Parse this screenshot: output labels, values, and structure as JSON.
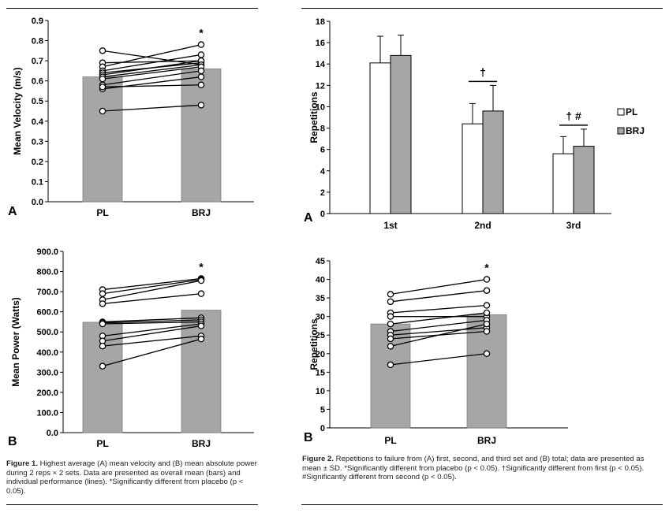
{
  "figure1": {
    "caption_label": "Figure 1.",
    "caption_text": "Highest average (A) mean velocity and (B) mean absolute power during 2 reps × 2 sets. Data are presented as overall mean (bars) and individual performance (lines). *Significantly different from placebo (p < 0.05)."
  },
  "figure2": {
    "caption_label": "Figure 2.",
    "caption_text": "Repetitions to failure from (A) first, second, and third set and (B) total; data are presented as mean ± SD. *Significantly different from placebo (p < 0.05). †Significantly different from first (p < 0.05). #Significantly different from second (p < 0.05)."
  },
  "chart_data": [
    {
      "id": "f1a",
      "type": "bar",
      "panel_label": "A",
      "ylabel": "Mean Velocity (m/s)",
      "ylim": [
        0,
        0.9
      ],
      "yticks": [
        "0.0",
        "0.1",
        "0.2",
        "0.3",
        "0.4",
        "0.5",
        "0.6",
        "0.7",
        "0.8",
        "0.9"
      ],
      "categories": [
        "PL",
        "BRJ"
      ],
      "values": [
        0.62,
        0.66
      ],
      "bar_color": "#a6a6a6",
      "annotation": "*",
      "individual_lines": [
        [
          0.75,
          0.68
        ],
        [
          0.69,
          0.7
        ],
        [
          0.67,
          0.78
        ],
        [
          0.65,
          0.73
        ],
        [
          0.64,
          0.69
        ],
        [
          0.63,
          0.7
        ],
        [
          0.62,
          0.68
        ],
        [
          0.61,
          0.67
        ],
        [
          0.58,
          0.65
        ],
        [
          0.56,
          0.62
        ],
        [
          0.57,
          0.58
        ],
        [
          0.45,
          0.48
        ]
      ]
    },
    {
      "id": "f1b",
      "type": "bar",
      "panel_label": "B",
      "ylabel": "Mean Power (Watts)",
      "ylim": [
        0,
        900
      ],
      "yticks": [
        "0.0",
        "100.0",
        "200.0",
        "300.0",
        "400.0",
        "500.0",
        "600.0",
        "700.0",
        "800.0",
        "900.0"
      ],
      "categories": [
        "PL",
        "BRJ"
      ],
      "values": [
        548,
        608
      ],
      "bar_color": "#a6a6a6",
      "annotation": "*",
      "individual_lines": [
        [
          710,
          765
        ],
        [
          690,
          760
        ],
        [
          660,
          755
        ],
        [
          640,
          690
        ],
        [
          550,
          570
        ],
        [
          545,
          560
        ],
        [
          540,
          550
        ],
        [
          480,
          540
        ],
        [
          455,
          530
        ],
        [
          430,
          480
        ],
        [
          330,
          465
        ]
      ]
    },
    {
      "id": "f2a",
      "type": "bar",
      "panel_label": "A",
      "ylabel": "Repetitions",
      "ylim": [
        0,
        18
      ],
      "yticks": [
        "0",
        "2",
        "4",
        "6",
        "8",
        "10",
        "12",
        "14",
        "16",
        "18"
      ],
      "categories": [
        "1st",
        "2nd",
        "3rd"
      ],
      "series": [
        {
          "name": "PL",
          "values": [
            14.1,
            8.4,
            5.6
          ],
          "sd": [
            2.5,
            1.9,
            1.6
          ],
          "color": "#ffffff"
        },
        {
          "name": "BRJ",
          "values": [
            14.8,
            9.6,
            6.3
          ],
          "sd": [
            1.9,
            2.4,
            1.6
          ],
          "color": "#a6a6a6"
        }
      ],
      "legend_position": "right",
      "annotations": [
        "†",
        "† #"
      ]
    },
    {
      "id": "f2b",
      "type": "bar",
      "panel_label": "B",
      "ylabel": "Repetitions",
      "ylim": [
        0,
        45
      ],
      "yticks": [
        "0",
        "5",
        "10",
        "15",
        "20",
        "25",
        "30",
        "35",
        "40",
        "45"
      ],
      "categories": [
        "PL",
        "BRJ"
      ],
      "values": [
        28,
        30.5
      ],
      "bar_color": "#a6a6a6",
      "annotation": "*",
      "individual_lines": [
        [
          36,
          40
        ],
        [
          34,
          37
        ],
        [
          31,
          33
        ],
        [
          30,
          30
        ],
        [
          28,
          31
        ],
        [
          26,
          29
        ],
        [
          25,
          27
        ],
        [
          24,
          26
        ],
        [
          22,
          28
        ],
        [
          17,
          20
        ]
      ]
    }
  ]
}
